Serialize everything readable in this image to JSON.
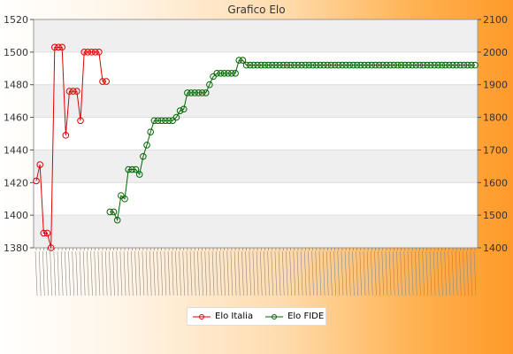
{
  "chart_data": {
    "type": "line",
    "title": "Grafico Elo",
    "legend_position": "bottom",
    "grid": true,
    "left_axis": {
      "ylim": [
        1380,
        1520
      ],
      "ticks": [
        1380,
        1400,
        1420,
        1440,
        1460,
        1480,
        1500,
        1520
      ]
    },
    "right_axis": {
      "ylim": [
        1400,
        2100
      ],
      "ticks": [
        1400,
        1500,
        1600,
        1700,
        1800,
        1900,
        2000,
        2100
      ]
    },
    "x_count": 120,
    "series": [
      {
        "name": "Elo Italia",
        "axis": "left",
        "color": "#dd0000",
        "start_index": 0,
        "values": [
          1421,
          1431,
          1389,
          1389,
          1380,
          1503,
          1503,
          1503,
          1449,
          1476,
          1476,
          1476,
          1458,
          1500,
          1500,
          1500,
          1500,
          1500,
          1482,
          1482
        ]
      },
      {
        "name": "Elo FIDE",
        "axis": "right",
        "color": "#006600",
        "start_index": 20,
        "values": [
          1510,
          1510,
          1485,
          1560,
          1550,
          1640,
          1640,
          1640,
          1625,
          1680,
          1715,
          1755,
          1790,
          1790,
          1790,
          1790,
          1790,
          1790,
          1800,
          1820,
          1825,
          1875,
          1875,
          1875,
          1875,
          1875,
          1875,
          1900,
          1925,
          1935,
          1935,
          1935,
          1935,
          1935,
          1935,
          1975,
          1975,
          1960,
          1960,
          1960,
          1960,
          1960,
          1960,
          1960,
          1960,
          1960,
          1960,
          1960,
          1960,
          1960,
          1960,
          1960,
          1960,
          1960,
          1960,
          1960,
          1960,
          1960,
          1960,
          1960,
          1960,
          1960,
          1960,
          1960,
          1960,
          1960,
          1960,
          1960,
          1960,
          1960,
          1960,
          1960,
          1960,
          1960,
          1960,
          1960,
          1960,
          1960,
          1960,
          1960,
          1960,
          1960,
          1960,
          1960,
          1960,
          1960,
          1960,
          1960,
          1960,
          1960,
          1960,
          1960,
          1960,
          1960,
          1960,
          1960,
          1960,
          1960,
          1960,
          1960
        ]
      }
    ]
  }
}
